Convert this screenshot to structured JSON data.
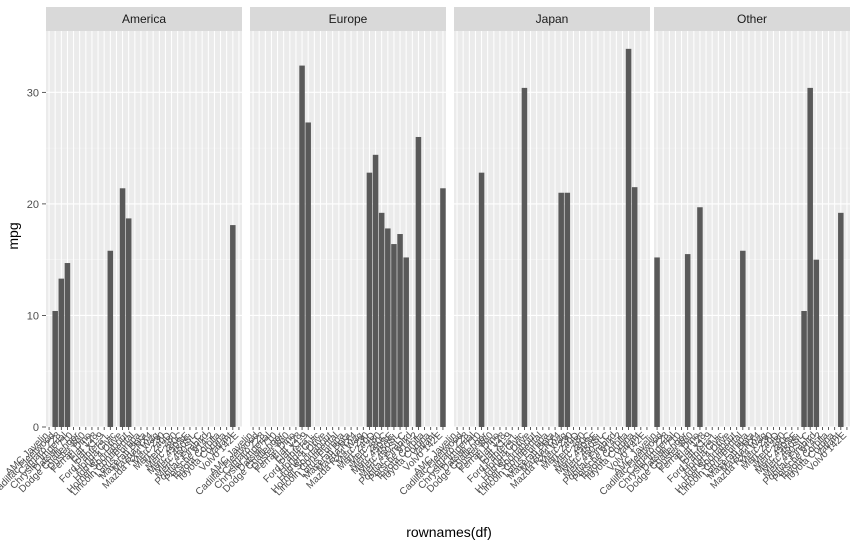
{
  "chart_data": {
    "type": "bar",
    "facet_by": "region",
    "xlabel": "rownames(df)",
    "ylabel": "mpg",
    "ylim": [
      0,
      35.5
    ],
    "yticks": [
      0,
      10,
      20,
      30
    ],
    "colors": {
      "bar": "#595959",
      "panel": "#ebebeb",
      "grid_major": "#ffffff",
      "grid_minor": "#f5f5f5",
      "strip": "#d9d9d9"
    },
    "categories": [
      "AMC Javelin",
      "Cadillac Fleetwood",
      "Camaro Z28",
      "Chrysler Imperial",
      "Datsun 710",
      "Dodge Challenger",
      "Duster 360",
      "Ferrari Dino",
      "Fiat 128",
      "Fiat X1-9",
      "Ford Pantera L",
      "Honda Civic",
      "Hornet 4 Drive",
      "Hornet Sportabout",
      "Lincoln Continental",
      "Lotus Europa",
      "Maserati Bora",
      "Mazda RX4",
      "Mazda RX4 Wag",
      "Merc 230",
      "Merc 240D",
      "Merc 280",
      "Merc 280C",
      "Merc 450SE",
      "Merc 450SL",
      "Merc 450SLC",
      "Pontiac Firebird",
      "Porsche 914-2",
      "Toyota Corolla",
      "Toyota Corona",
      "Valiant",
      "Volvo 142E"
    ],
    "panels": [
      {
        "name": "America",
        "values": [
          null,
          10.4,
          13.3,
          14.7,
          null,
          null,
          null,
          null,
          null,
          null,
          15.8,
          null,
          21.4,
          18.7,
          null,
          null,
          null,
          null,
          null,
          null,
          null,
          null,
          null,
          null,
          null,
          null,
          null,
          null,
          null,
          null,
          18.1,
          null
        ]
      },
      {
        "name": "Europe",
        "values": [
          null,
          null,
          null,
          null,
          null,
          null,
          null,
          null,
          32.4,
          27.3,
          null,
          null,
          null,
          null,
          null,
          null,
          null,
          null,
          null,
          22.8,
          24.4,
          19.2,
          17.8,
          16.4,
          17.3,
          15.2,
          null,
          26.0,
          null,
          null,
          null,
          21.4
        ]
      },
      {
        "name": "Japan",
        "values": [
          null,
          null,
          null,
          null,
          22.8,
          null,
          null,
          null,
          null,
          null,
          null,
          30.4,
          null,
          null,
          null,
          null,
          null,
          21.0,
          21.0,
          null,
          null,
          null,
          null,
          null,
          null,
          null,
          null,
          null,
          33.9,
          21.5,
          null,
          null
        ]
      },
      {
        "name": "Other",
        "values": [
          15.2,
          null,
          null,
          null,
          null,
          15.5,
          null,
          19.7,
          null,
          null,
          null,
          null,
          null,
          null,
          15.8,
          null,
          null,
          null,
          null,
          null,
          null,
          null,
          null,
          null,
          10.4,
          30.4,
          15.0,
          null,
          null,
          null,
          19.2,
          null
        ]
      }
    ]
  }
}
